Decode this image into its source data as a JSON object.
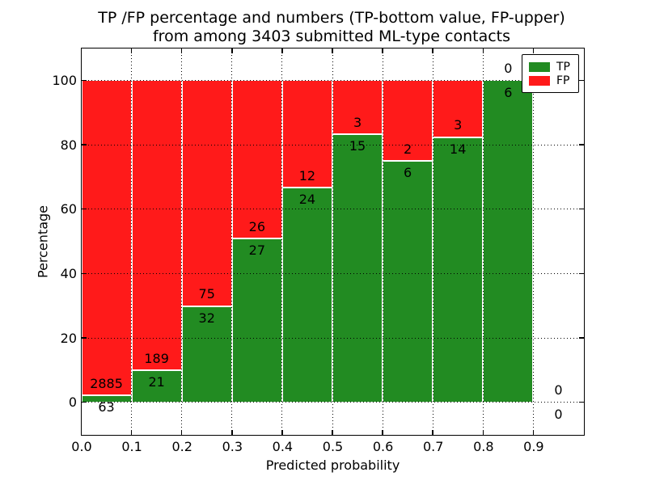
{
  "chart_data": {
    "type": "bar",
    "variant": "stacked-100-percent",
    "title": "TP /FP percentage and numbers (TP-bottom value, FP-upper)",
    "subtitle": "from among 3403 submitted ML-type contacts",
    "total_contacts": 3403,
    "xlabel": "Predicted probability",
    "ylabel": "Percentage",
    "xlim": [
      0.0,
      1.0
    ],
    "ylim": [
      -10,
      110
    ],
    "bin_width": 0.1,
    "bin_starts": [
      0.0,
      0.1,
      0.2,
      0.3,
      0.4,
      0.5,
      0.6,
      0.7,
      0.8,
      0.9
    ],
    "x_tick_labels": [
      "0.0",
      "0.1",
      "0.2",
      "0.3",
      "0.4",
      "0.5",
      "0.6",
      "0.7",
      "0.8",
      "0.9"
    ],
    "y_tick_labels": [
      "0",
      "20",
      "40",
      "60",
      "80",
      "100"
    ],
    "y_tick_values": [
      0,
      20,
      40,
      60,
      80,
      100
    ],
    "x_gridline_values": [
      0.1,
      0.2,
      0.3,
      0.4,
      0.5,
      0.6,
      0.7,
      0.8,
      0.9
    ],
    "grid": "dotted",
    "series": [
      {
        "name": "TP",
        "color": "#228B22",
        "values": [
          63,
          21,
          32,
          27,
          24,
          15,
          6,
          14,
          6,
          0
        ]
      },
      {
        "name": "FP",
        "color": "#FF1A1A",
        "values": [
          2885,
          189,
          75,
          26,
          12,
          3,
          2,
          3,
          0,
          0
        ]
      }
    ],
    "legend_position": "upper-right"
  }
}
